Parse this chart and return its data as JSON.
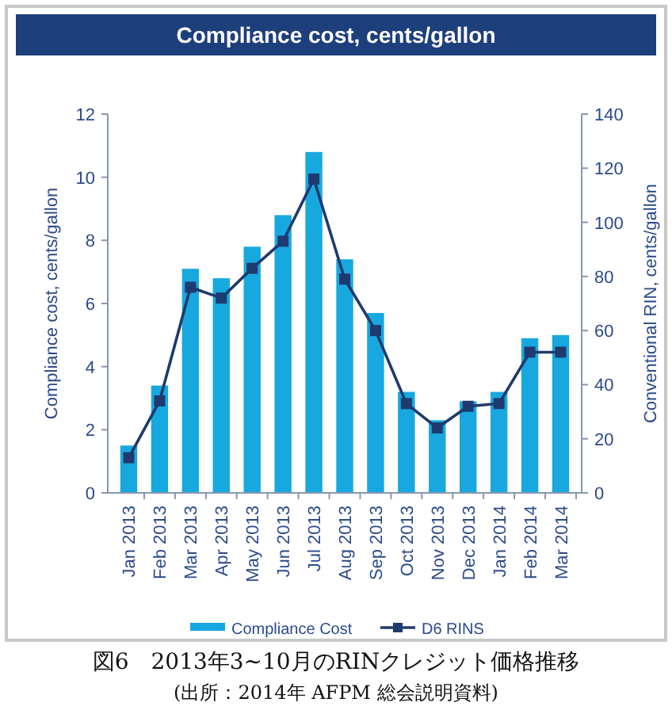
{
  "chart_data": {
    "type": "bar",
    "title": "Compliance cost, cents/gallon",
    "ylabel": "Compliance cost, cents/gallon",
    "y2label": "Conventional RIN, cents/gallon",
    "categories": [
      "Jan 2013",
      "Feb 2013",
      "Mar 2013",
      "Apr 2013",
      "May 2013",
      "Jun 2013",
      "Jul 2013",
      "Aug 2013",
      "Sep 2013",
      "Oct 2013",
      "Nov 2013",
      "Dec 2013",
      "Jan 2014",
      "Feb 2014",
      "Mar 2014"
    ],
    "series": [
      {
        "name": "Compliance Cost",
        "color": "#18a8e0",
        "values": [
          1.5,
          3.4,
          7.1,
          6.8,
          7.8,
          8.8,
          10.8,
          7.4,
          5.7,
          3.2,
          2.3,
          2.9,
          3.2,
          4.9,
          5.0
        ]
      },
      {
        "name": "D6 RINS",
        "type": "line",
        "axis": "y2",
        "color": "#1f3a6e",
        "values": [
          13,
          34,
          76,
          72,
          83,
          93,
          116,
          79,
          60,
          33,
          24,
          32,
          33,
          52,
          52
        ]
      }
    ],
    "ylim": [
      0,
      12
    ],
    "yticks": [
      0,
      2,
      4,
      6,
      8,
      10,
      12
    ],
    "y2lim": [
      0,
      140
    ],
    "y2ticks": [
      0,
      20,
      40,
      60,
      80,
      100,
      120,
      140
    ],
    "marker": "square",
    "legend": "bottom",
    "grid": false,
    "annotations": [
      "図6　2013年3~10月のRINクレジット価格推移",
      "(出所：2014年 AFPM 総会説明資料)"
    ]
  }
}
